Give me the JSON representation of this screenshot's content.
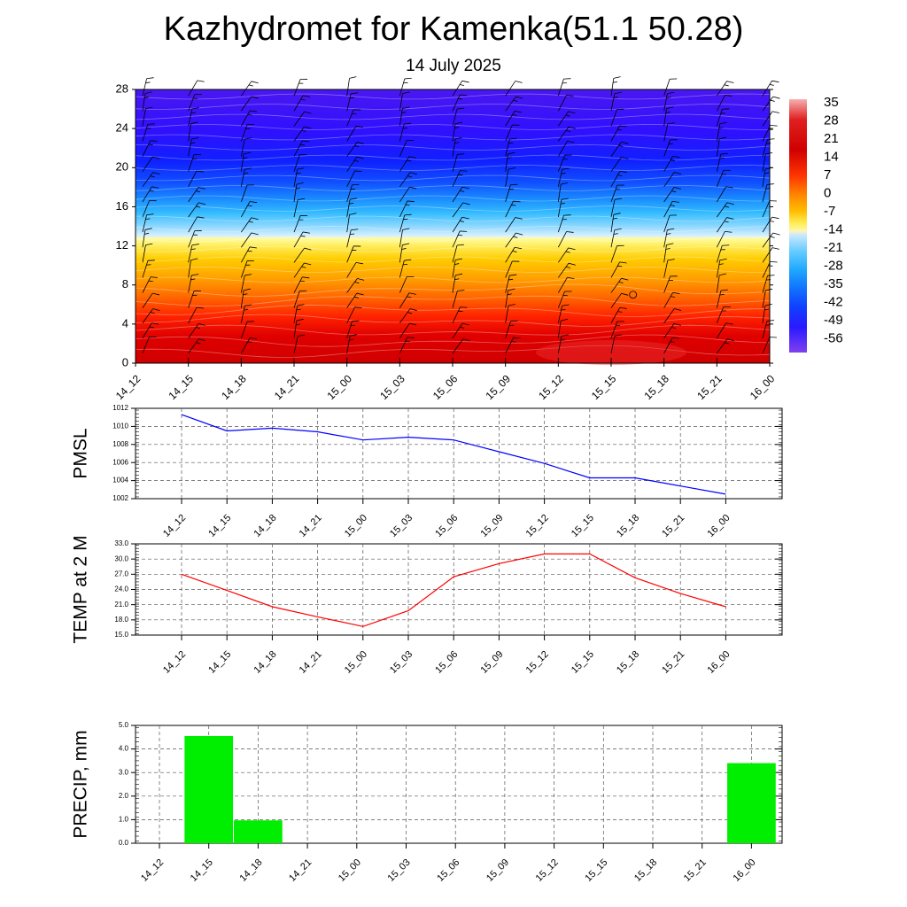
{
  "title": "Kazhydromet for Kamenka(51.1 50.28)",
  "subtitle": "14 July 2025",
  "colors": {
    "pmsl_line": "#0000ff",
    "temp_line": "#ff0000",
    "precip_bar": "#00ee00",
    "barb": "#000000"
  },
  "chart_data": [
    {
      "type": "heatmap",
      "name": "cross-section",
      "x": [
        "14_12",
        "14_15",
        "14_18",
        "14_21",
        "15_00",
        "15_03",
        "15_06",
        "15_09",
        "15_12",
        "15_15",
        "15_18",
        "15_21",
        "16_00"
      ],
      "y_ticks": [
        0,
        4,
        8,
        12,
        16,
        20,
        24,
        28
      ],
      "ylim": [
        0,
        28
      ],
      "colorbar_labels": [
        "35",
        "28",
        "21",
        "14",
        "7",
        "0",
        "-7",
        "-14",
        "-21",
        "-28",
        "-35",
        "-42",
        "-49",
        "-56"
      ],
      "overlay": "wind-barbs"
    },
    {
      "type": "line",
      "name": "pmsl",
      "ylabel": "PMSL",
      "x": [
        "14_12",
        "14_15",
        "14_18",
        "14_21",
        "15_00",
        "15_03",
        "15_06",
        "15_09",
        "15_12",
        "15_15",
        "15_18",
        "15_21",
        "16_00"
      ],
      "values": [
        1011.3,
        1009.5,
        1009.8,
        1009.4,
        1008.5,
        1008.8,
        1008.5,
        1007.2,
        1005.9,
        1004.3,
        1004.3,
        1003.4,
        1002.5
      ],
      "ylim": [
        1002,
        1012
      ],
      "y_ticks": [
        "1002",
        "1004",
        "1006",
        "1008",
        "1010",
        "1012"
      ],
      "grid": true
    },
    {
      "type": "line",
      "name": "temp",
      "ylabel": "TEMP at 2 M",
      "x": [
        "14_12",
        "14_15",
        "14_18",
        "14_21",
        "15_00",
        "15_03",
        "15_06",
        "15_09",
        "15_12",
        "15_15",
        "15_18",
        "15_21",
        "16_00"
      ],
      "values": [
        27.0,
        23.8,
        20.6,
        18.6,
        16.7,
        19.8,
        26.5,
        29.1,
        31.0,
        31.0,
        26.3,
        23.2,
        20.6
      ],
      "ylim": [
        15,
        33
      ],
      "y_ticks": [
        "15.0",
        "18.0",
        "21.0",
        "24.0",
        "27.0",
        "30.0",
        "33.0"
      ],
      "grid": true
    },
    {
      "type": "bar",
      "name": "precip",
      "ylabel": "PRECIP, mm",
      "x": [
        "14_12",
        "14_15",
        "14_18",
        "14_21",
        "15_00",
        "15_03",
        "15_06",
        "15_09",
        "15_12",
        "15_15",
        "15_18",
        "15_21",
        "16_00"
      ],
      "values": [
        0,
        4.55,
        0.97,
        0,
        0,
        0,
        0,
        0,
        0,
        0,
        0,
        0,
        3.4
      ],
      "ylim": [
        0,
        5
      ],
      "y_ticks": [
        "0.0",
        "1.0",
        "2.0",
        "3.0",
        "4.0",
        "5.0"
      ],
      "grid": true
    }
  ]
}
